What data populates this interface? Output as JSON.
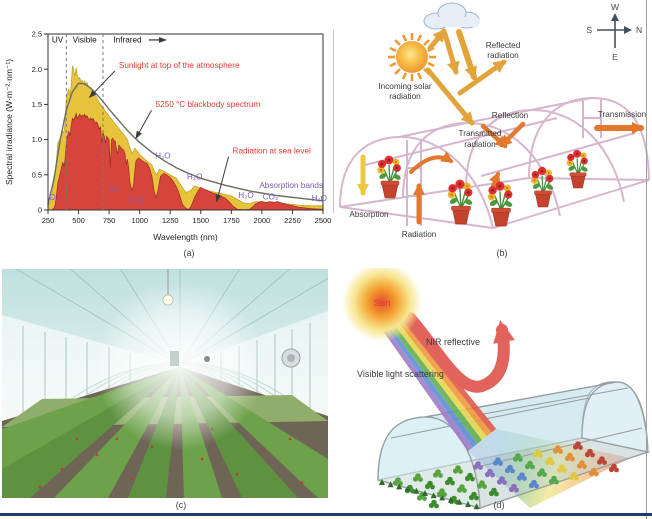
{
  "figure": {
    "panel_labels": {
      "a": "(a)",
      "b": "(b)",
      "c": "(c)",
      "d": "(d)"
    },
    "accent_colors": {
      "sunlight_yellow": "#e7c33c",
      "sea_level_red": "#d6443c",
      "blackbody_gray": "#6e6c5e",
      "annotation_red": "#e03a2f",
      "absorption_purple": "#7a5bb5",
      "arrow_gold": "#e3a33b",
      "arrow_orange": "#e2772e",
      "bottom_border_navy": "#1d3a6e"
    }
  },
  "chart_data": {
    "type": "area",
    "title": "",
    "xlabel": "Wavelength (nm)",
    "ylabel": "Spectral irradiance (W·m⁻²·nm⁻¹)",
    "xlim": [
      250,
      2500
    ],
    "ylim": [
      0,
      2.5
    ],
    "x_ticks": [
      250,
      500,
      750,
      1000,
      1250,
      1500,
      1750,
      2000,
      2250,
      2500
    ],
    "y_ticks": [
      0,
      0.5,
      1.0,
      1.5,
      2.0,
      2.5
    ],
    "grid": false,
    "legend_position": "none",
    "spectral_region_boundaries_nm": [
      400,
      700
    ],
    "region_labels": [
      {
        "text": "UV",
        "x": 328,
        "y": 2.38
      },
      {
        "text": "Visible",
        "x": 550,
        "y": 2.38
      },
      {
        "text": "Infrared",
        "x": 785,
        "y": 2.38,
        "arrow_from_nm": 1075,
        "arrow_to_nm": 1215
      }
    ],
    "series": [
      {
        "name": "Sunlight at top of the atmosphere",
        "type": "area",
        "color": "#e7c33c",
        "edge": "#bf9d26",
        "x": [
          250,
          270,
          290,
          300,
          310,
          320,
          330,
          340,
          350,
          360,
          370,
          380,
          390,
          400,
          410,
          420,
          430,
          440,
          450,
          460,
          470,
          480,
          490,
          500,
          510,
          520,
          530,
          540,
          550,
          560,
          570,
          580,
          600,
          620,
          640,
          660,
          680,
          700,
          720,
          740,
          760,
          780,
          800,
          820,
          850,
          880,
          900,
          920,
          940,
          960,
          1000,
          1050,
          1100,
          1120,
          1140,
          1160,
          1200,
          1250,
          1300,
          1350,
          1380,
          1420,
          1450,
          1500,
          1550,
          1600,
          1650,
          1700,
          1750,
          1800,
          1850,
          1900,
          1950,
          2000,
          2050,
          2100,
          2150,
          2200,
          2250,
          2300,
          2400,
          2500
        ],
        "y": [
          0.06,
          0.12,
          0.3,
          0.48,
          0.55,
          0.72,
          0.95,
          0.98,
          1.02,
          1.05,
          1.12,
          1.1,
          1.25,
          1.6,
          1.68,
          1.72,
          1.62,
          1.78,
          2.05,
          1.98,
          1.9,
          2.02,
          1.92,
          1.86,
          1.88,
          1.82,
          1.84,
          1.8,
          1.83,
          1.79,
          1.81,
          1.76,
          1.73,
          1.68,
          1.62,
          1.56,
          1.5,
          1.46,
          1.4,
          1.36,
          1.31,
          1.27,
          1.22,
          1.18,
          1.11,
          1.05,
          1.0,
          0.88,
          0.8,
          0.88,
          0.79,
          0.71,
          0.64,
          0.55,
          0.5,
          0.58,
          0.55,
          0.5,
          0.45,
          0.32,
          0.25,
          0.28,
          0.34,
          0.31,
          0.28,
          0.26,
          0.24,
          0.22,
          0.2,
          0.15,
          0.1,
          0.09,
          0.12,
          0.12,
          0.11,
          0.1,
          0.1,
          0.09,
          0.08,
          0.07,
          0.06,
          0.06
        ]
      },
      {
        "name": "Radiation at sea level",
        "type": "area",
        "color": "#d6443c",
        "edge": "#9c2d24",
        "x": [
          280,
          300,
          310,
          320,
          330,
          340,
          350,
          360,
          370,
          380,
          390,
          400,
          410,
          420,
          430,
          440,
          450,
          460,
          470,
          480,
          490,
          500,
          510,
          520,
          530,
          540,
          550,
          560,
          570,
          580,
          590,
          600,
          610,
          620,
          630,
          640,
          650,
          660,
          670,
          680,
          690,
          700,
          710,
          720,
          730,
          740,
          750,
          760,
          770,
          780,
          790,
          800,
          810,
          820,
          830,
          840,
          850,
          860,
          870,
          880,
          890,
          900,
          910,
          920,
          935,
          950,
          960,
          970,
          980,
          990,
          1000,
          1020,
          1040,
          1060,
          1080,
          1100,
          1120,
          1135,
          1150,
          1170,
          1200,
          1220,
          1250,
          1270,
          1300,
          1320,
          1350,
          1380,
          1400,
          1420,
          1450,
          1480,
          1500,
          1520,
          1550,
          1570,
          1600,
          1650,
          1700,
          1730,
          1760,
          1800,
          1850,
          1900,
          1930,
          1950,
          1980,
          2000,
          2030,
          2060,
          2100,
          2130,
          2160,
          2200,
          2250,
          2300,
          2350,
          2400,
          2450,
          2500
        ],
        "y": [
          0,
          0.03,
          0.08,
          0.22,
          0.38,
          0.45,
          0.52,
          0.6,
          0.68,
          0.62,
          0.72,
          0.95,
          1.05,
          1.12,
          1.05,
          1.2,
          1.3,
          1.28,
          1.32,
          1.37,
          1.3,
          1.33,
          1.36,
          1.32,
          1.35,
          1.33,
          1.36,
          1.32,
          1.34,
          1.3,
          1.28,
          1.31,
          1.28,
          1.3,
          1.26,
          1.23,
          1.25,
          1.2,
          1.15,
          1.18,
          0.95,
          1.1,
          1.05,
          0.95,
          1.05,
          1.02,
          1.0,
          0.6,
          1.0,
          1.02,
          0.98,
          0.98,
          0.85,
          0.8,
          0.92,
          0.9,
          0.88,
          0.86,
          0.85,
          0.8,
          0.65,
          0.72,
          0.6,
          0.4,
          0.28,
          0.35,
          0.55,
          0.7,
          0.72,
          0.74,
          0.73,
          0.7,
          0.68,
          0.66,
          0.6,
          0.48,
          0.25,
          0.18,
          0.28,
          0.48,
          0.52,
          0.5,
          0.46,
          0.42,
          0.33,
          0.25,
          0.08,
          0.02,
          0.01,
          0.05,
          0.18,
          0.28,
          0.32,
          0.3,
          0.28,
          0.26,
          0.24,
          0.21,
          0.17,
          0.12,
          0.06,
          0.01,
          0.005,
          0.01,
          0.05,
          0.09,
          0.11,
          0.12,
          0.1,
          0.12,
          0.11,
          0.12,
          0.1,
          0.08,
          0.06,
          0.04,
          0.03,
          0.02,
          0.015,
          0.01
        ]
      },
      {
        "name": "5250 °C blackbody spectrum",
        "type": "line",
        "color": "#6e6c5e",
        "x": [
          250,
          300,
          350,
          400,
          450,
          500,
          550,
          600,
          650,
          700,
          750,
          800,
          850,
          900,
          950,
          1000,
          1100,
          1200,
          1300,
          1400,
          1500,
          1600,
          1700,
          1800,
          1900,
          2000,
          2100,
          2200,
          2300,
          2400,
          2500
        ],
        "y": [
          0.08,
          0.45,
          1.0,
          1.42,
          1.68,
          1.8,
          1.79,
          1.73,
          1.64,
          1.54,
          1.43,
          1.33,
          1.23,
          1.13,
          1.04,
          0.96,
          0.82,
          0.7,
          0.6,
          0.52,
          0.45,
          0.4,
          0.35,
          0.31,
          0.27,
          0.24,
          0.21,
          0.19,
          0.17,
          0.15,
          0.13
        ]
      }
    ],
    "annotations": [
      {
        "text": "Sunlight at top of the atmosphere",
        "x": 830,
        "y": 2.02,
        "arrow_to": {
          "x": 590,
          "y": 1.6
        }
      },
      {
        "text": "5250 °C blackbody spectrum",
        "x": 1130,
        "y": 1.46,
        "arrow_to": {
          "x": 970,
          "y": 1.02
        }
      },
      {
        "text": "Radiation at sea level",
        "x": 1760,
        "y": 0.8,
        "arrow_to": {
          "x": 1630,
          "y": 0.12
        }
      }
    ],
    "absorption_labels": [
      {
        "text": "O₃",
        "x": 300,
        "y": 0.14
      },
      {
        "text": "O₂",
        "x": 790,
        "y": 0.27
      },
      {
        "text": "H₂O",
        "x": 970,
        "y": 0.1
      },
      {
        "text": "H₂O",
        "x": 1190,
        "y": 0.73
      },
      {
        "text": "H₂O",
        "x": 1450,
        "y": 0.43
      },
      {
        "text": "H₂O",
        "x": 1870,
        "y": 0.17
      },
      {
        "text": "CO₂",
        "x": 2070,
        "y": 0.15
      },
      {
        "text": "Absorption bands",
        "x": 2240,
        "y": 0.31
      },
      {
        "text": "H₂O",
        "x": 2470,
        "y": 0.13
      }
    ]
  },
  "panel_b": {
    "compass": {
      "top": "W",
      "left": "S",
      "right": "N",
      "bottom": "E"
    },
    "labels": {
      "reflected_line1": "Reflected",
      "reflected_line2": "radiation",
      "incoming_line1": "Incoming solar",
      "incoming_line2": "radiation",
      "reflection": "Reflection",
      "transmission": "Transmission",
      "transmitted_line1": "Transmitted",
      "transmitted_line2": "radiation",
      "absorption": "Absorption",
      "radiation": "Radiation"
    }
  },
  "panel_d": {
    "sun": "Sun",
    "nir": "NIR reflective",
    "visible": "Visible light scattering"
  }
}
